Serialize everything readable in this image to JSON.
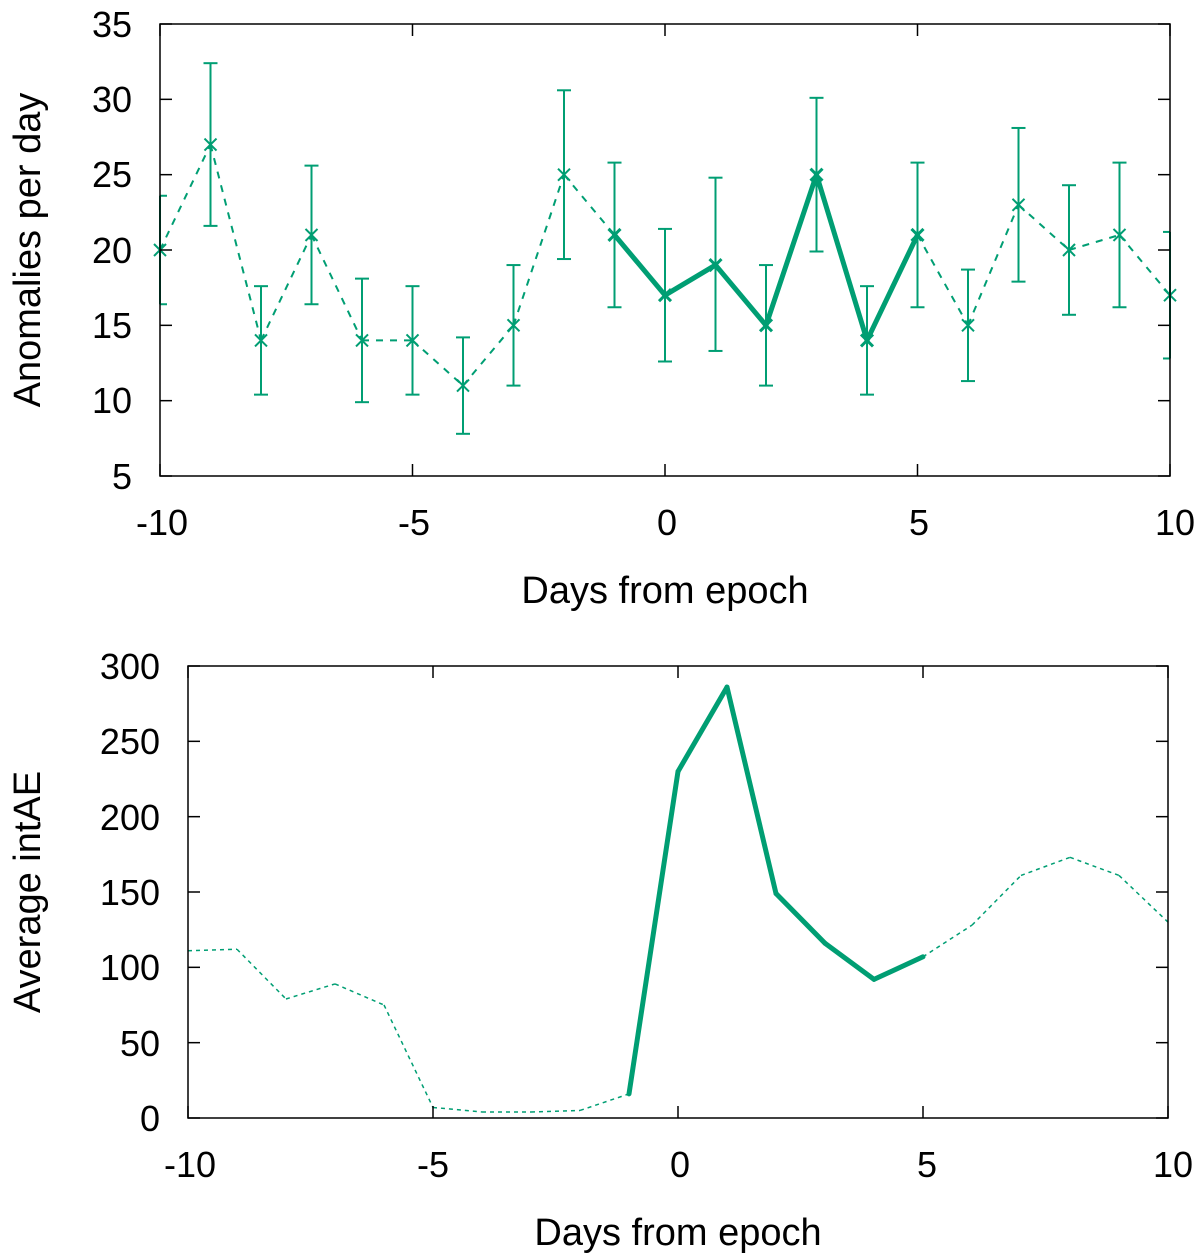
{
  "colors": {
    "series": "#009e73",
    "axes": "#000000",
    "background": "#ffffff"
  },
  "chart_data": [
    {
      "type": "line",
      "xlabel": "Days from epoch",
      "ylabel": "Anomalies per day",
      "xlim": [
        -10,
        10
      ],
      "ylim": [
        5,
        35
      ],
      "xticks": [
        "-10",
        "-5",
        "0",
        "5",
        "10"
      ],
      "yticks": [
        "5",
        "10",
        "15",
        "20",
        "25",
        "30",
        "35"
      ],
      "grid": false,
      "legend": "none",
      "markers": "x",
      "x": [
        -10,
        -9,
        -8,
        -7,
        -6,
        -5,
        -4,
        -3,
        -2,
        -1,
        0,
        1,
        2,
        3,
        4,
        5,
        6,
        7,
        8,
        9,
        10
      ],
      "y": [
        20,
        27,
        14,
        21,
        14,
        14,
        11,
        15,
        25,
        21,
        17,
        19,
        15,
        25,
        14,
        21,
        15,
        23,
        20,
        21,
        17
      ],
      "error_low": [
        16.4,
        21.6,
        10.4,
        16.4,
        9.9,
        10.4,
        7.8,
        11.0,
        19.4,
        16.2,
        12.6,
        13.3,
        11.0,
        19.9,
        10.4,
        16.2,
        11.3,
        17.9,
        15.7,
        16.2,
        12.8
      ],
      "error_high": [
        23.6,
        32.4,
        17.6,
        25.6,
        18.1,
        17.6,
        14.2,
        19.0,
        30.6,
        25.8,
        21.4,
        24.8,
        19.0,
        30.1,
        17.6,
        25.8,
        18.7,
        28.1,
        24.3,
        25.8,
        21.2
      ],
      "highlight_range": [
        -1,
        5
      ],
      "line_style": {
        "outside": "dashed",
        "inside": "solid-thick"
      }
    },
    {
      "type": "line",
      "xlabel": "Days from epoch",
      "ylabel": "Average intAE",
      "xlim": [
        -10,
        10
      ],
      "ylim": [
        0,
        300
      ],
      "xticks": [
        "-10",
        "-5",
        "0",
        "5",
        "10"
      ],
      "yticks": [
        "0",
        "50",
        "100",
        "150",
        "200",
        "250",
        "300"
      ],
      "grid": false,
      "legend": "none",
      "x": [
        -10,
        -9,
        -8,
        -7,
        -6,
        -5,
        -4,
        -3,
        -2,
        -1,
        0,
        1,
        2,
        3,
        4,
        5,
        6,
        7,
        8,
        9,
        10
      ],
      "y": [
        111,
        112,
        79,
        89,
        75,
        7,
        4,
        4,
        5,
        16,
        230,
        286,
        149,
        116,
        92,
        107,
        128,
        161,
        173,
        161,
        130
      ],
      "highlight_range": [
        -1,
        5
      ],
      "line_style": {
        "outside": "dotted-thin",
        "inside": "solid-thick"
      }
    }
  ]
}
